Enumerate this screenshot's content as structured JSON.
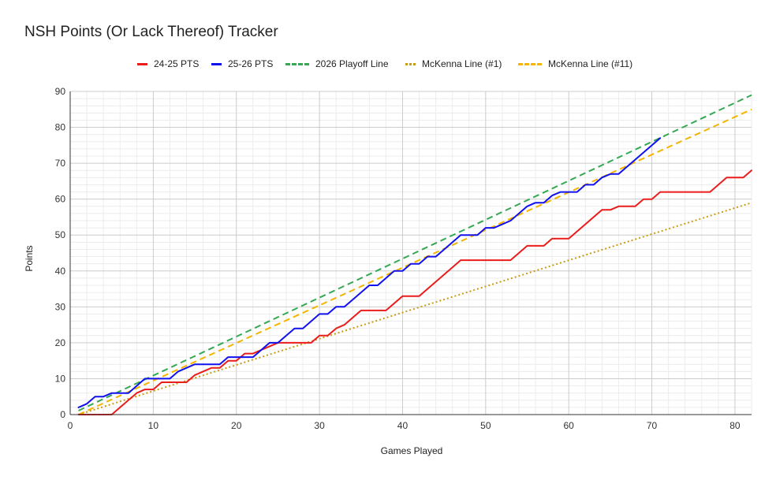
{
  "chart_data": {
    "type": "line",
    "title": "NSH Points (Or Lack Thereof) Tracker",
    "xlabel": "Games Played",
    "ylabel": "Points",
    "xlim": [
      0,
      82
    ],
    "ylim": [
      0,
      90
    ],
    "x_ticks": [
      0,
      10,
      20,
      30,
      40,
      50,
      60,
      70,
      80
    ],
    "y_ticks": [
      0,
      10,
      20,
      30,
      40,
      50,
      60,
      70,
      80,
      90
    ],
    "grid": true,
    "legend_position": "top",
    "series": [
      {
        "name": "24-25 PTS",
        "color": "#ea1c1c",
        "style": "solid",
        "points": [
          [
            1,
            0
          ],
          [
            5,
            0
          ],
          [
            6,
            2
          ],
          [
            7,
            4
          ],
          [
            8,
            6
          ],
          [
            9,
            7
          ],
          [
            10,
            7
          ],
          [
            11,
            9
          ],
          [
            12,
            9
          ],
          [
            14,
            9
          ],
          [
            15,
            11
          ],
          [
            16,
            12
          ],
          [
            17,
            13
          ],
          [
            18,
            13
          ],
          [
            19,
            15
          ],
          [
            20,
            15
          ],
          [
            21,
            17
          ],
          [
            22,
            17
          ],
          [
            23,
            18
          ],
          [
            24,
            19
          ],
          [
            25,
            20
          ],
          [
            29,
            20
          ],
          [
            30,
            22
          ],
          [
            31,
            22
          ],
          [
            32,
            24
          ],
          [
            33,
            25
          ],
          [
            35,
            29
          ],
          [
            38,
            29
          ],
          [
            40,
            33
          ],
          [
            42,
            33
          ],
          [
            47,
            43
          ],
          [
            53,
            43
          ],
          [
            55,
            47
          ],
          [
            57,
            47
          ],
          [
            58,
            49
          ],
          [
            60,
            49
          ],
          [
            64,
            57
          ],
          [
            65,
            57
          ],
          [
            66,
            58
          ],
          [
            68,
            58
          ],
          [
            69,
            60
          ],
          [
            70,
            60
          ],
          [
            71,
            62
          ],
          [
            77,
            62
          ],
          [
            79,
            66
          ],
          [
            81,
            66
          ],
          [
            82,
            68
          ]
        ]
      },
      {
        "name": "25-26 PTS",
        "color": "#1111ee",
        "style": "solid",
        "points": [
          [
            1,
            2
          ],
          [
            2,
            3
          ],
          [
            3,
            5
          ],
          [
            4,
            5
          ],
          [
            5,
            6
          ],
          [
            7,
            6
          ],
          [
            8,
            8
          ],
          [
            9,
            10
          ],
          [
            12,
            10
          ],
          [
            13,
            12
          ],
          [
            15,
            14
          ],
          [
            18,
            14
          ],
          [
            19,
            16
          ],
          [
            20,
            16
          ],
          [
            22,
            16
          ],
          [
            23,
            18
          ],
          [
            24,
            20
          ],
          [
            25,
            20
          ],
          [
            27,
            24
          ],
          [
            28,
            24
          ],
          [
            30,
            28
          ],
          [
            31,
            28
          ],
          [
            32,
            30
          ],
          [
            33,
            30
          ],
          [
            36,
            36
          ],
          [
            37,
            36
          ],
          [
            39,
            40
          ],
          [
            40,
            40
          ],
          [
            41,
            42
          ],
          [
            42,
            42
          ],
          [
            43,
            44
          ],
          [
            44,
            44
          ],
          [
            47,
            50
          ],
          [
            49,
            50
          ],
          [
            50,
            52
          ],
          [
            51,
            52
          ],
          [
            53,
            54
          ],
          [
            55,
            58
          ],
          [
            56,
            59
          ],
          [
            57,
            59
          ],
          [
            58,
            61
          ],
          [
            59,
            62
          ],
          [
            61,
            62
          ],
          [
            62,
            64
          ],
          [
            63,
            64
          ],
          [
            64,
            66
          ],
          [
            65,
            67
          ],
          [
            66,
            67
          ],
          [
            71,
            77
          ]
        ]
      },
      {
        "name": "2026 Playoff Line",
        "color": "#34a853",
        "style": "dashed",
        "points": [
          [
            1,
            1.1
          ],
          [
            82,
            89
          ]
        ]
      },
      {
        "name": "McKenna Line (#1)",
        "color": "#c99b12",
        "style": "dotted",
        "points": [
          [
            1,
            0
          ],
          [
            82,
            59
          ]
        ]
      },
      {
        "name": "McKenna Line (#11)",
        "color": "#f4b400",
        "style": "dashed",
        "points": [
          [
            1,
            0
          ],
          [
            82,
            85
          ]
        ]
      }
    ]
  }
}
